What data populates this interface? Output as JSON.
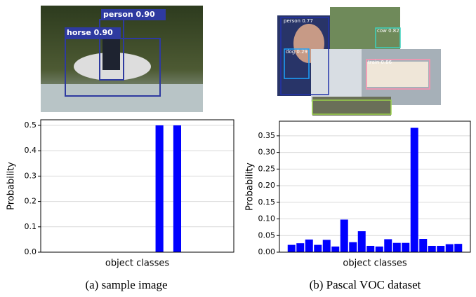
{
  "images": [
    {
      "labels": [
        "person 0.90",
        "horse 0.90"
      ]
    },
    {
      "labels": [
        "person 0.77",
        "cow 0.82",
        "dog 0.29",
        "train 0.86"
      ]
    }
  ],
  "chart_data": [
    {
      "type": "bar",
      "caption": "(a) sample image",
      "xlabel": "object classes",
      "ylabel": "Probability",
      "color": "#0000ff",
      "grid": true,
      "categories": [
        null,
        null,
        null,
        null,
        null,
        null,
        null,
        null,
        null,
        null,
        null,
        null,
        null,
        null,
        null,
        null,
        null,
        null,
        null,
        null
      ],
      "values": [
        0,
        0,
        0,
        0,
        0,
        0,
        0,
        0,
        0,
        0,
        0,
        0,
        0.5,
        0,
        0.5,
        0,
        0,
        0,
        0,
        0
      ],
      "ylim": [
        0,
        0.522
      ],
      "yticks": [
        {
          "value": 0,
          "label": "0.0"
        },
        0.1,
        0.2,
        0.3,
        0.4,
        0.5
      ]
    },
    {
      "type": "bar",
      "caption": "(b) Pascal VOC dataset",
      "xlabel": "object classes",
      "ylabel": "Probability",
      "color": "#0000ff",
      "grid": true,
      "categories": [
        null,
        null,
        null,
        null,
        null,
        null,
        null,
        null,
        null,
        null,
        null,
        null,
        null,
        null,
        null,
        null,
        null,
        null,
        null,
        null
      ],
      "values": [
        0.022,
        0.027,
        0.038,
        0.022,
        0.037,
        0.017,
        0.098,
        0.03,
        0.063,
        0.019,
        0.017,
        0.039,
        0.028,
        0.028,
        0.374,
        0.04,
        0.019,
        0.019,
        0.024,
        0.025
      ],
      "ylim": [
        0,
        0.394
      ],
      "yticks": [
        {
          "value": 0,
          "label": "0.00"
        },
        {
          "value": 0.05,
          "label": "0.05"
        },
        {
          "value": 0.1,
          "label": "0.10"
        },
        {
          "value": 0.15,
          "label": "0.15"
        },
        {
          "value": 0.2,
          "label": "0.20"
        },
        {
          "value": 0.25,
          "label": "0.25"
        },
        {
          "value": 0.3,
          "label": "0.30"
        },
        {
          "value": 0.35,
          "label": "0.35"
        }
      ]
    }
  ]
}
